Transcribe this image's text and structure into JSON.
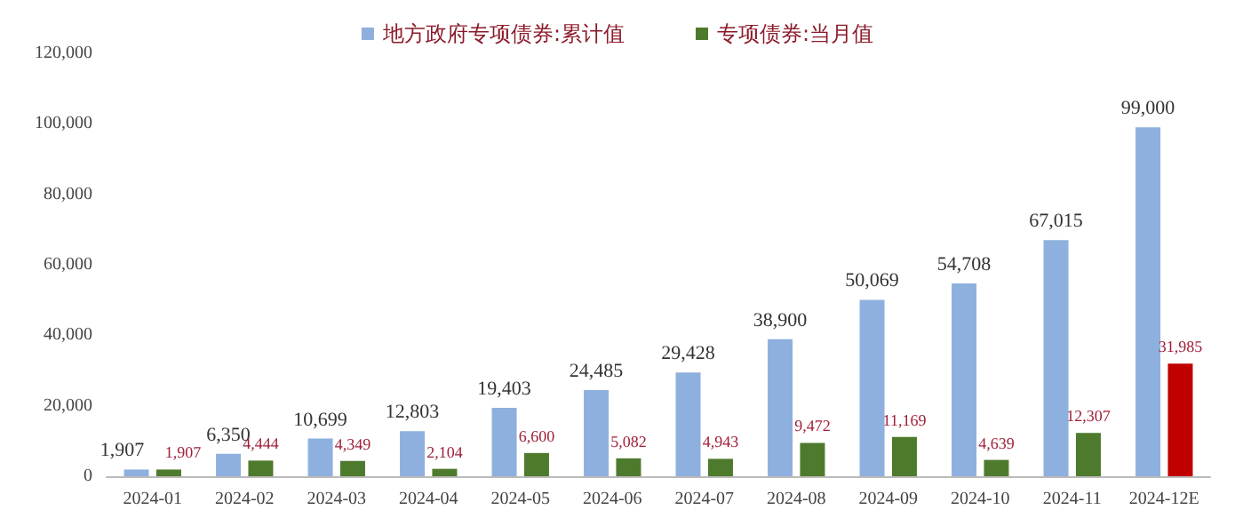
{
  "chart_data": {
    "type": "bar",
    "categories": [
      "2024-01",
      "2024-02",
      "2024-03",
      "2024-04",
      "2024-05",
      "2024-06",
      "2024-07",
      "2024-08",
      "2024-09",
      "2024-10",
      "2024-11",
      "2024-12E"
    ],
    "series": [
      {
        "name": "地方政府专项债券:累计值",
        "color": "#8eb0de",
        "values": [
          1907,
          6350,
          10699,
          12803,
          19403,
          24485,
          29428,
          38900,
          50069,
          54708,
          67015,
          99000
        ],
        "value_labels": [
          "1,907",
          "6,350",
          "10,699",
          "12,803",
          "19,403",
          "24,485",
          "29,428",
          "38,900",
          "50,069",
          "54,708",
          "67,015",
          "99,000"
        ]
      },
      {
        "name": "专项债券:当月值",
        "color": "#4e7a2e",
        "colors": [
          "#4e7a2e",
          "#4e7a2e",
          "#4e7a2e",
          "#4e7a2e",
          "#4e7a2e",
          "#4e7a2e",
          "#4e7a2e",
          "#4e7a2e",
          "#4e7a2e",
          "#4e7a2e",
          "#4e7a2e",
          "#c00000"
        ],
        "values": [
          1907,
          4444,
          4349,
          2104,
          6600,
          5082,
          4943,
          9472,
          11169,
          4639,
          12307,
          31985
        ],
        "value_labels": [
          "1,907",
          "4,444",
          "4,349",
          "2,104",
          "6,600",
          "5,082",
          "4,943",
          "9,472",
          "11,169",
          "4,639",
          "12,307",
          "31,985"
        ]
      }
    ],
    "ylim": [
      0,
      120000
    ],
    "yticks": [
      {
        "value": 0,
        "label": "0"
      },
      {
        "value": 20000,
        "label": "20,000"
      },
      {
        "value": 40000,
        "label": "40,000"
      },
      {
        "value": 60000,
        "label": "60,000"
      },
      {
        "value": 80000,
        "label": "80,000"
      },
      {
        "value": 100000,
        "label": "100,000"
      },
      {
        "value": 120000,
        "label": "120,000"
      }
    ],
    "grid": false,
    "legend": "top"
  }
}
